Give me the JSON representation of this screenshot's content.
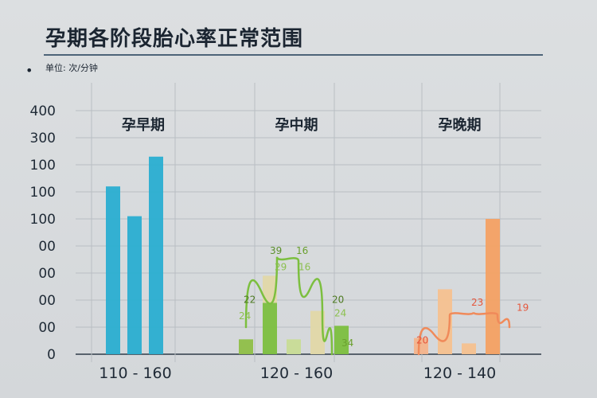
{
  "title": "孕期各阶段胎心率正常范围",
  "unit_label": "单位: 次/分钟",
  "bullet": "•",
  "chart_data": {
    "type": "bar",
    "title": "孕期各阶段胎心率正常范围",
    "ylabel": "单位: 次/分钟",
    "grid": true,
    "y_tick_labels": [
      "0",
      "00",
      "00",
      "00",
      "00",
      "100",
      "100",
      "100",
      "300",
      "400"
    ],
    "groups": [
      {
        "label": "孕早期",
        "range_label": "110 - 160",
        "color": "#2aaed1",
        "bars": [
          {
            "index": 0,
            "value": 6.2
          },
          {
            "index": 1,
            "value": 5.1
          },
          {
            "index": 2,
            "value": 7.3
          }
        ],
        "curve": [],
        "labels": []
      },
      {
        "label": "孕中期",
        "range_label": "120 - 160",
        "color": "#7cbf3f",
        "bars": [
          {
            "index": 0,
            "value": 0.55,
            "color": "#8fbf48"
          },
          {
            "index": 1,
            "value": 1.9,
            "color": "#7cbf3f"
          },
          {
            "index": 1,
            "value": 1.0,
            "color": "#e2d8a8",
            "stack": true
          },
          {
            "index": 2,
            "value": 0.55,
            "color": "#c8dc96"
          },
          {
            "index": 3,
            "value": 1.6,
            "color": "#e2d8a8"
          },
          {
            "index": 4,
            "value": 1.05,
            "color": "#7cbf3f"
          }
        ],
        "curve": [
          [
            0.3,
            1.0
          ],
          [
            1.6,
            3.6
          ],
          [
            2.5,
            3.45
          ],
          [
            3.5,
            1.45
          ],
          [
            3.9,
            0.0
          ]
        ],
        "labels": [
          {
            "text": "39",
            "pos": [
              1.3,
              3.7
            ],
            "color": "#5a8f2a"
          },
          {
            "text": "16",
            "pos": [
              2.4,
              3.7
            ],
            "color": "#6aa02e"
          },
          {
            "text": "29",
            "pos": [
              1.5,
              3.1
            ],
            "color": "#8cc050"
          },
          {
            "text": "16",
            "pos": [
              2.5,
              3.1
            ],
            "color": "#8cc050"
          },
          {
            "text": "22",
            "pos": [
              0.2,
              1.9
            ],
            "color": "#4d7a22"
          },
          {
            "text": "24",
            "pos": [
              0.0,
              1.3
            ],
            "color": "#8cc050"
          },
          {
            "text": "20",
            "pos": [
              3.9,
              1.9
            ],
            "color": "#4d7a22"
          },
          {
            "text": "24",
            "pos": [
              4.0,
              1.4
            ],
            "color": "#8cc050"
          },
          {
            "text": "34",
            "pos": [
              4.3,
              0.3
            ],
            "color": "#6aa02e"
          }
        ]
      },
      {
        "label": "孕晚期",
        "range_label": "120  -  140",
        "color": "#f08a5a",
        "bars": [
          {
            "index": 0,
            "value": 0.6,
            "color": "#f4b48c"
          },
          {
            "index": 1,
            "value": 2.4,
            "color": "#f6c18f"
          },
          {
            "index": 2,
            "value": 0.4,
            "color": "#f6c18f"
          },
          {
            "index": 3,
            "value": 5.0,
            "color": "#f4a163"
          }
        ],
        "curve": [
          [
            0.2,
            0.0
          ],
          [
            1.5,
            1.45
          ],
          [
            2.5,
            1.55
          ],
          [
            3.5,
            1.45
          ],
          [
            4.0,
            1.0
          ]
        ],
        "labels": [
          {
            "text": "20",
            "pos": [
              0.1,
              0.4
            ],
            "color": "#e5573d"
          },
          {
            "text": "23",
            "pos": [
              2.4,
              1.8
            ],
            "color": "#e5573d"
          },
          {
            "text": "19",
            "pos": [
              4.3,
              1.6
            ],
            "color": "#e5573d"
          }
        ]
      }
    ]
  }
}
